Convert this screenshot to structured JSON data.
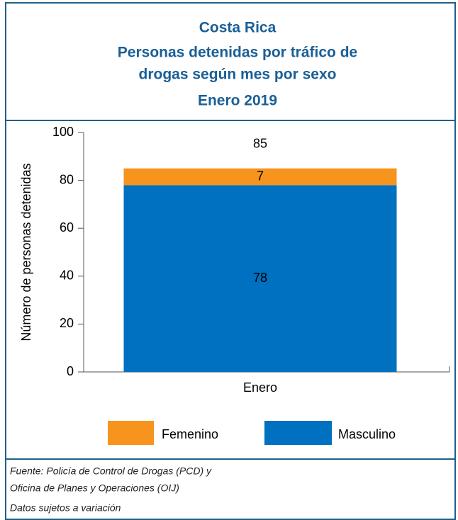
{
  "chart_data": {
    "type": "stacked_bar",
    "title": [
      "Costa Rica",
      "Personas detenidas  por tráfico de",
      "drogas según mes por sexo",
      "Enero  2019"
    ],
    "ylabel": "Número de personas detenidas",
    "categories": [
      "Enero"
    ],
    "series": [
      {
        "name": "Femenino",
        "color": "#f7941d",
        "values": [
          7
        ]
      },
      {
        "name": "Masculino",
        "color": "#0070c0",
        "values": [
          78
        ]
      }
    ],
    "totals": [
      85
    ],
    "ylim": [
      0,
      100
    ],
    "yticks": [
      0,
      20,
      40,
      60,
      80,
      100
    ],
    "source": [
      "Fuente: Policía de Control de Drogas (PCD) y",
      "Oficina de Planes y Operaciones (OIJ)"
    ],
    "note": "Datos sujetos a variación"
  }
}
